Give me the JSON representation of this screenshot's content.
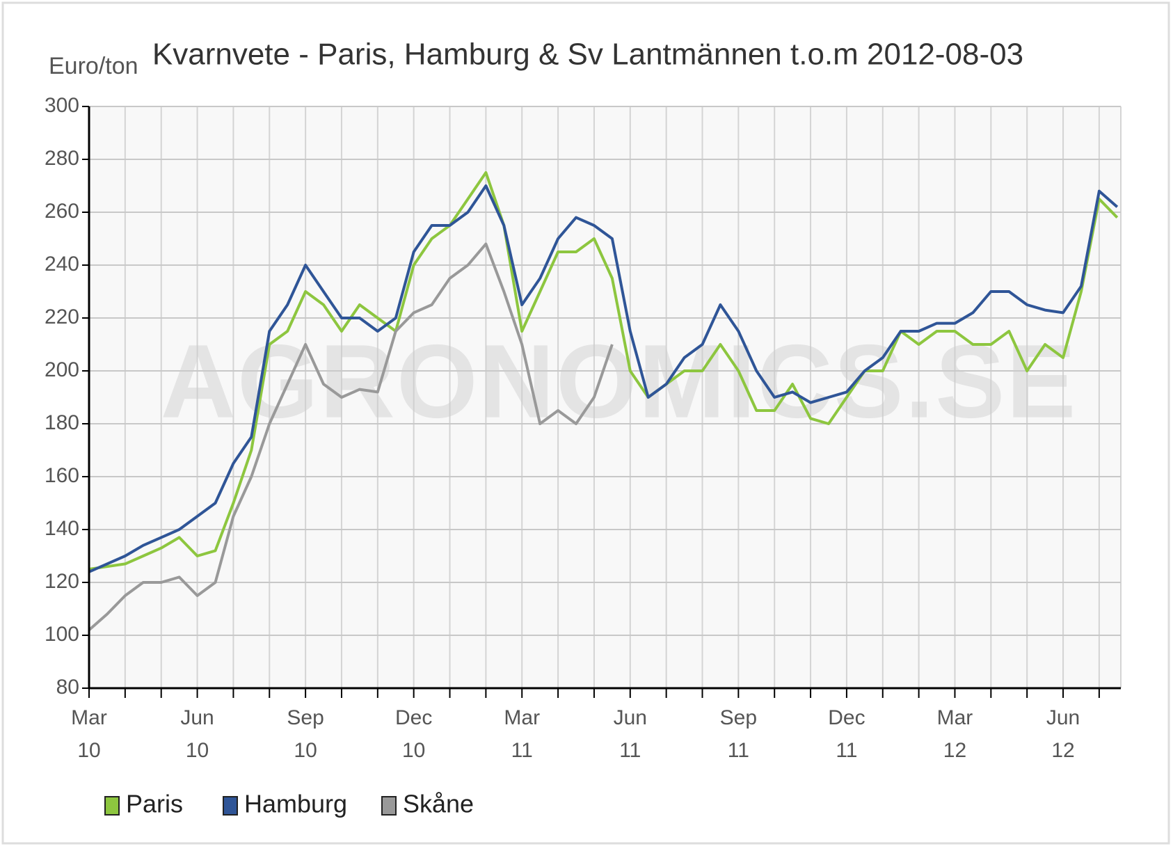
{
  "chart_data": {
    "type": "line",
    "title": "Kvarnvete - Paris, Hamburg & Sv Lantmännen t.o.m 2012-08-03",
    "y_label": "Euro/ton",
    "watermark": "AGRONOMICS.SE",
    "categories": [
      "Mar 10",
      null,
      null,
      null,
      null,
      null,
      "Jun 10",
      null,
      null,
      null,
      null,
      null,
      "Sep 10",
      null,
      null,
      null,
      null,
      null,
      "Dec 10",
      null,
      null,
      null,
      null,
      null,
      "Mar 11",
      null,
      null,
      null,
      null,
      null,
      "Jun 11",
      null,
      null,
      null,
      null,
      null,
      "Sep 11",
      null,
      null,
      null,
      null,
      null,
      "Dec 11",
      null,
      null,
      null,
      null,
      null,
      "Mar 12",
      null,
      null,
      null,
      null,
      null,
      "Jun 12",
      null,
      null,
      null
    ],
    "series": [
      {
        "name": "Paris",
        "color": "#8dc63f",
        "values": [
          125,
          126,
          127,
          130,
          133,
          137,
          130,
          132,
          150,
          170,
          210,
          215,
          230,
          225,
          215,
          225,
          220,
          215,
          240,
          250,
          255,
          265,
          275,
          255,
          215,
          230,
          245,
          245,
          250,
          235,
          200,
          190,
          195,
          200,
          200,
          210,
          200,
          185,
          185,
          195,
          182,
          180,
          190,
          200,
          200,
          215,
          210,
          215,
          215,
          210,
          210,
          215,
          200,
          210,
          205,
          230,
          265,
          258
        ]
      },
      {
        "name": "Hamburg",
        "color": "#2f5597",
        "values": [
          124,
          127,
          130,
          134,
          137,
          140,
          145,
          150,
          165,
          175,
          215,
          225,
          240,
          230,
          220,
          220,
          215,
          220,
          245,
          255,
          255,
          260,
          270,
          255,
          225,
          235,
          250,
          258,
          255,
          250,
          215,
          190,
          195,
          205,
          210,
          225,
          215,
          200,
          190,
          192,
          188,
          190,
          192,
          200,
          205,
          215,
          215,
          218,
          218,
          222,
          230,
          230,
          225,
          223,
          222,
          232,
          268,
          262
        ]
      },
      {
        "name": "Skåne",
        "color": "#999999",
        "values": [
          102,
          108,
          115,
          120,
          120,
          122,
          115,
          120,
          145,
          160,
          180,
          195,
          210,
          195,
          190,
          193,
          192,
          215,
          222,
          225,
          235,
          240,
          248,
          230,
          210,
          180,
          185,
          180,
          190,
          210,
          null,
          null,
          null,
          null,
          null,
          null,
          null,
          null,
          null,
          null,
          null,
          null,
          null,
          null,
          null,
          null,
          null,
          null,
          null,
          null,
          null,
          null,
          null,
          null,
          null,
          null,
          null,
          null
        ]
      }
    ],
    "ylim": [
      80,
      300
    ],
    "yticks": [
      80,
      100,
      120,
      140,
      160,
      180,
      200,
      220,
      240,
      260,
      280,
      300
    ],
    "grid": true
  }
}
